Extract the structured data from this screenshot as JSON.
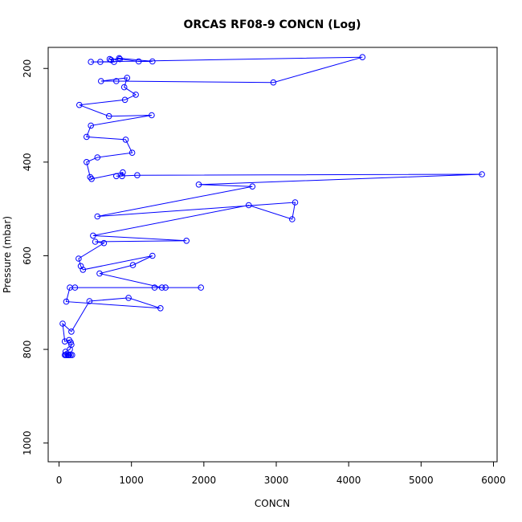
{
  "chart_data": {
    "type": "line",
    "title": "ORCAS RF08-9 CONCN (Log)",
    "xlabel": "CONCN",
    "ylabel": "Pressure (mbar)",
    "xlim": [
      -150,
      6050
    ],
    "ylim": [
      1040,
      155
    ],
    "y_reversed": true,
    "x_ticks": [
      0,
      1000,
      2000,
      3000,
      4000,
      5000,
      6000
    ],
    "y_ticks": [
      200,
      400,
      600,
      800,
      1000
    ],
    "grid": false,
    "series_color": "#0000ff",
    "marker": "open-circle",
    "points": [
      [
        95,
        812
      ],
      [
        140,
        812
      ],
      [
        180,
        812
      ],
      [
        120,
        812
      ],
      [
        80,
        812
      ],
      [
        160,
        812
      ],
      [
        100,
        812
      ],
      [
        130,
        812
      ],
      [
        90,
        805
      ],
      [
        150,
        800
      ],
      [
        170,
        790
      ],
      [
        160,
        785
      ],
      [
        140,
        780
      ],
      [
        80,
        783
      ],
      [
        50,
        745
      ],
      [
        170,
        762
      ],
      [
        420,
        697
      ],
      [
        960,
        690
      ],
      [
        1400,
        712
      ],
      [
        100,
        698
      ],
      [
        150,
        668
      ],
      [
        220,
        668
      ],
      [
        1320,
        668
      ],
      [
        1470,
        668
      ],
      [
        1960,
        668
      ],
      [
        1420,
        668
      ],
      [
        560,
        638
      ],
      [
        1020,
        620
      ],
      [
        1290,
        600
      ],
      [
        330,
        630
      ],
      [
        300,
        622
      ],
      [
        270,
        606
      ],
      [
        620,
        573
      ],
      [
        500,
        570
      ],
      [
        1760,
        568
      ],
      [
        470,
        557
      ],
      [
        2620,
        492
      ],
      [
        3220,
        522
      ],
      [
        3260,
        486
      ],
      [
        530,
        516
      ],
      [
        2670,
        452
      ],
      [
        1930,
        448
      ],
      [
        5840,
        426
      ],
      [
        1080,
        428
      ],
      [
        790,
        430
      ],
      [
        870,
        430
      ],
      [
        880,
        422
      ],
      [
        450,
        436
      ],
      [
        430,
        432
      ],
      [
        380,
        400
      ],
      [
        530,
        390
      ],
      [
        1010,
        380
      ],
      [
        920,
        352
      ],
      [
        380,
        346
      ],
      [
        440,
        322
      ],
      [
        1280,
        300
      ],
      [
        690,
        302
      ],
      [
        280,
        278
      ],
      [
        910,
        267
      ],
      [
        1060,
        256
      ],
      [
        900,
        240
      ],
      [
        940,
        220
      ],
      [
        580,
        227
      ],
      [
        790,
        227
      ],
      [
        2960,
        230
      ],
      [
        4190,
        176
      ],
      [
        440,
        186
      ],
      [
        570,
        186
      ],
      [
        760,
        186
      ],
      [
        700,
        180
      ],
      [
        840,
        180
      ],
      [
        1100,
        185
      ],
      [
        1290,
        185
      ],
      [
        830,
        178
      ],
      [
        720,
        182
      ]
    ]
  }
}
